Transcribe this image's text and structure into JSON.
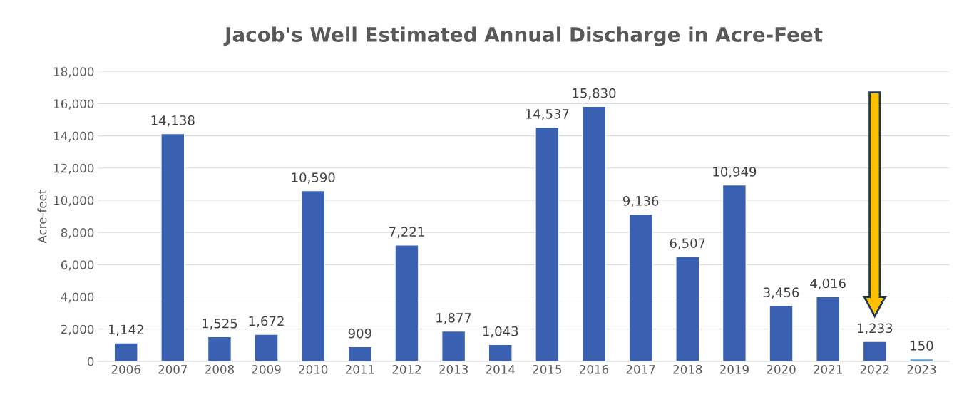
{
  "chart_data": {
    "type": "bar",
    "title": "Jacob's Well Estimated Annual Discharge in Acre-Feet",
    "ylabel": "Acre-feet",
    "categories": [
      "2006",
      "2007",
      "2008",
      "2009",
      "2010",
      "2011",
      "2012",
      "2013",
      "2014",
      "2015",
      "2016",
      "2017",
      "2018",
      "2019",
      "2020",
      "2021",
      "2022",
      "2023"
    ],
    "values": [
      1142,
      14138,
      1525,
      1672,
      10590,
      909,
      7221,
      1877,
      1043,
      14537,
      15830,
      9136,
      6507,
      10949,
      3456,
      4016,
      1233,
      150
    ],
    "colors": [
      "#3a60b2",
      "#3a60b2",
      "#3a60b2",
      "#3a60b2",
      "#3a60b2",
      "#3a60b2",
      "#3a60b2",
      "#3a60b2",
      "#3a60b2",
      "#3a60b2",
      "#3a60b2",
      "#3a60b2",
      "#3a60b2",
      "#3a60b2",
      "#3a60b2",
      "#3a60b2",
      "#3a60b2",
      "#5b9bd5"
    ],
    "value_labels": [
      "1,142",
      "14,138",
      "1,525",
      "1,672",
      "10,590",
      "909",
      "7,221",
      "1,877",
      "1,043",
      "14,537",
      "15,830",
      "9,136",
      "6,507",
      "10,949",
      "3,456",
      "4,016",
      "1,233",
      "150"
    ],
    "ylim": [
      0,
      18000
    ],
    "yticks": [
      0,
      {
        "value": 2000,
        "label": "2,000"
      },
      {
        "value": 4000,
        "label": "4,000"
      },
      {
        "value": 6000,
        "label": "6,000"
      },
      {
        "value": 8000,
        "label": "8,000"
      },
      {
        "value": 10000,
        "label": "10,000"
      },
      {
        "value": 12000,
        "label": "12,000"
      },
      {
        "value": 14000,
        "label": "14,000"
      },
      {
        "value": 16000,
        "label": "16,000"
      },
      {
        "value": 18000,
        "label": "18,000"
      }
    ],
    "grid": "y",
    "legend": false
  }
}
